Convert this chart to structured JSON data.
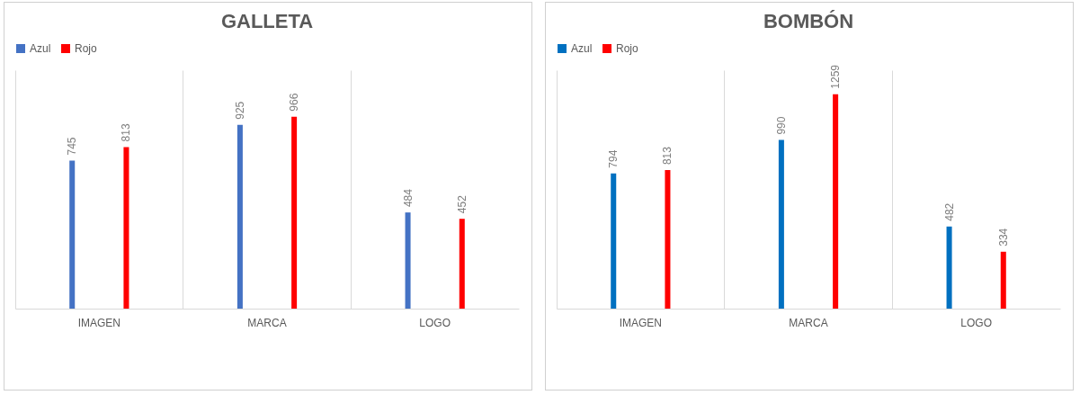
{
  "chart_data": [
    {
      "type": "bar",
      "title": "GALLETA",
      "categories": [
        "IMAGEN",
        "MARCA",
        "LOGO"
      ],
      "series": [
        {
          "name": "Azul",
          "color": "#4472c4",
          "values": [
            745,
            925,
            484
          ]
        },
        {
          "name": "Rojo",
          "color": "#ff0000",
          "values": [
            813,
            966,
            452
          ]
        }
      ],
      "ylim": [
        0,
        1200
      ],
      "tick_labels": "x",
      "data_labels": true,
      "grid": "x",
      "legend": "top"
    },
    {
      "type": "bar",
      "title": "BOMBÓN",
      "categories": [
        "IMAGEN",
        "MARCA",
        "LOGO"
      ],
      "series": [
        {
          "name": "Azul",
          "color": "#0070c0",
          "values": [
            794,
            990,
            482
          ]
        },
        {
          "name": "Rojo",
          "color": "#ff0000",
          "values": [
            813,
            1259,
            334
          ]
        }
      ],
      "ylim": [
        0,
        1400
      ],
      "tick_labels": "x",
      "data_labels": true,
      "grid": "x",
      "legend": "top"
    }
  ]
}
